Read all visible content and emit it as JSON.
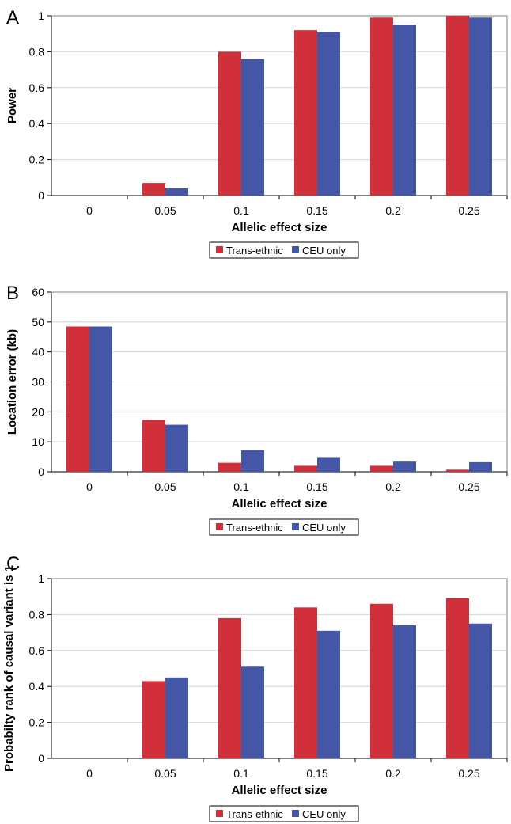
{
  "colors": {
    "trans_ethnic": "#d0303a",
    "ceu_only": "#4457a6",
    "grid": "#d4d4d4",
    "axis": "#808080"
  },
  "chart_data": [
    {
      "panel": "A",
      "type": "bar",
      "categories": [
        "0",
        "0.05",
        "0.1",
        "0.15",
        "0.2",
        "0.25"
      ],
      "series": [
        {
          "name": "Trans-ethnic",
          "values": [
            0,
            0.07,
            0.8,
            0.92,
            0.99,
            1.0
          ]
        },
        {
          "name": "CEU only",
          "values": [
            0,
            0.04,
            0.76,
            0.91,
            0.95,
            0.99
          ]
        }
      ],
      "xlabel": "Allelic effect size",
      "ylabel": "Power",
      "ylim": [
        0,
        1
      ],
      "yticks": [
        "0",
        "0.2",
        "0.4",
        "0.6",
        "0.8",
        "1"
      ],
      "legend": [
        "Trans-ethnic",
        "CEU only"
      ]
    },
    {
      "panel": "B",
      "type": "bar",
      "categories": [
        "0",
        "0.05",
        "0.1",
        "0.15",
        "0.2",
        "0.25"
      ],
      "series": [
        {
          "name": "Trans-ethnic",
          "values": [
            48.5,
            17.3,
            3.0,
            2.0,
            2.0,
            0.7
          ]
        },
        {
          "name": "CEU only",
          "values": [
            48.5,
            15.7,
            7.2,
            4.9,
            3.4,
            3.2
          ]
        }
      ],
      "xlabel": "Allelic effect size",
      "ylabel": "Location error (kb)",
      "ylim": [
        0,
        60
      ],
      "yticks": [
        "0",
        "10",
        "20",
        "30",
        "40",
        "50",
        "60"
      ],
      "legend": [
        "Trans-ethnic",
        "CEU only"
      ]
    },
    {
      "panel": "C",
      "type": "bar",
      "categories": [
        "0",
        "0.05",
        "0.1",
        "0.15",
        "0.2",
        "0.25"
      ],
      "series": [
        {
          "name": "Trans-ethnic",
          "values": [
            0,
            0.43,
            0.78,
            0.84,
            0.86,
            0.89
          ]
        },
        {
          "name": "CEU only",
          "values": [
            0,
            0.45,
            0.51,
            0.71,
            0.74,
            0.75
          ]
        }
      ],
      "xlabel": "Allelic effect size",
      "ylabel": "Probabilty rank of causal variant is 1",
      "ylim": [
        0,
        1
      ],
      "yticks": [
        "0",
        "0.2",
        "0.4",
        "0.6",
        "0.8",
        "1"
      ],
      "legend": [
        "Trans-ethnic",
        "CEU only"
      ]
    }
  ]
}
